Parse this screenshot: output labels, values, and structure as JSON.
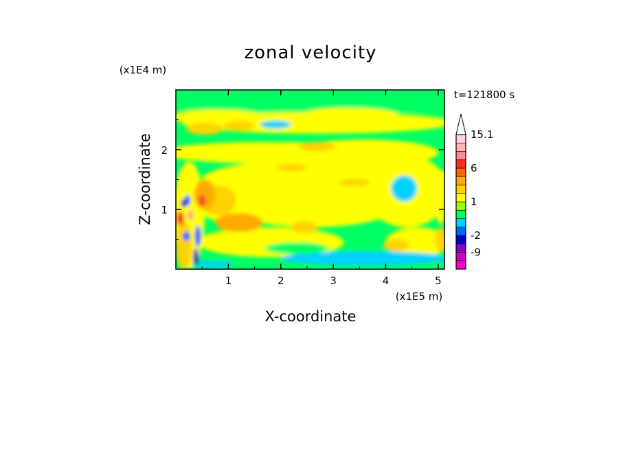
{
  "chart_data": {
    "type": "heatmap",
    "title": "zonal velocity",
    "xlabel": "X-coordinate",
    "ylabel": "Z-coordinate",
    "x_unit": "(x1E5 m)",
    "y_unit": "(x1E4 m)",
    "time_label": "t=121800 s",
    "xlim": [
      0,
      5.12
    ],
    "ylim": [
      0,
      3.0
    ],
    "x_ticks": [
      "1",
      "2",
      "3",
      "4",
      "5"
    ],
    "y_ticks": [
      "1",
      "2"
    ],
    "colorbar": {
      "levels": [
        -15,
        -12,
        -9,
        -6,
        -2,
        -1,
        0,
        0.5,
        1,
        1.5,
        2,
        4,
        6,
        8,
        10,
        12,
        15.1
      ],
      "colors": [
        "#ff00c8",
        "#c800c8",
        "#8c00c8",
        "#0000c8",
        "#0064ff",
        "#00d2ff",
        "#00ff64",
        "#96ff00",
        "#ffff00",
        "#ffd200",
        "#ffaa00",
        "#ff6400",
        "#ff2828",
        "#ff8c8c",
        "#ffb4b4",
        "#ffd2d2"
      ],
      "tick_labels": [
        "15.1",
        "6",
        "1",
        "-2",
        "-9"
      ],
      "extend": "max"
    },
    "dominant_values": "mostly between -2 and 2 (green/yellow), with orange patches 2-4 and small blue/red features near x<0.5"
  }
}
